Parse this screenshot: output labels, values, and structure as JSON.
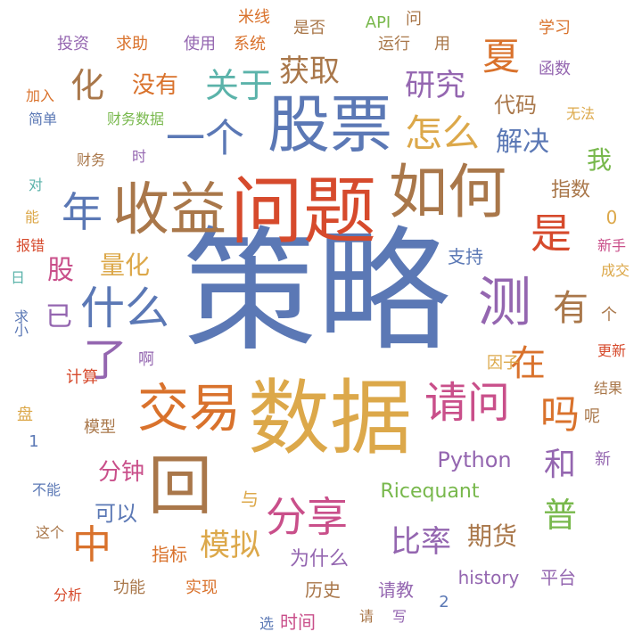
{
  "palette": {
    "blue": "#5b78b5",
    "red": "#d64a2c",
    "orange": "#d9722c",
    "gold": "#dca84a",
    "yellow": "#e2b43a",
    "purple": "#9466b0",
    "pink": "#c94f8a",
    "green": "#78b84c",
    "teal": "#5bb3aa",
    "brown": "#a9774a"
  },
  "words": [
    {
      "text": "策略",
      "color": "blue",
      "orient": "h"
    },
    {
      "text": "数据",
      "color": "gold",
      "orient": "h"
    },
    {
      "text": "问题",
      "color": "red",
      "orient": "h"
    },
    {
      "text": "股票",
      "color": "blue",
      "orient": "h"
    },
    {
      "text": "如何",
      "color": "brown",
      "orient": "h"
    },
    {
      "text": "收益",
      "color": "brown",
      "orient": "h"
    },
    {
      "text": "回",
      "color": "brown",
      "orient": "h"
    },
    {
      "text": "交易",
      "color": "orange",
      "orient": "h"
    },
    {
      "text": "测",
      "color": "purple",
      "orient": "h"
    },
    {
      "text": "一个",
      "color": "blue",
      "orient": "h"
    },
    {
      "text": "请问",
      "color": "pink",
      "orient": "h"
    },
    {
      "text": "吗",
      "color": "orange",
      "orient": "h"
    },
    {
      "text": "是",
      "color": "red",
      "orient": "h"
    },
    {
      "text": "什么",
      "color": "blue",
      "orient": "h"
    },
    {
      "text": "了",
      "color": "purple",
      "orient": "h"
    },
    {
      "text": "怎么",
      "color": "gold",
      "orient": "h"
    },
    {
      "text": "年",
      "color": "blue",
      "orient": "h"
    },
    {
      "text": "分享",
      "color": "pink",
      "orient": "h"
    },
    {
      "text": "中",
      "color": "orange",
      "orient": "h"
    },
    {
      "text": "有",
      "color": "brown",
      "orient": "h"
    },
    {
      "text": "在",
      "color": "orange",
      "orient": "h"
    },
    {
      "text": "和",
      "color": "purple",
      "orient": "h"
    },
    {
      "text": "普",
      "color": "green",
      "orient": "h"
    },
    {
      "text": "夏",
      "color": "orange",
      "orient": "h"
    },
    {
      "text": "化",
      "color": "brown",
      "orient": "h"
    },
    {
      "text": "关于",
      "color": "teal",
      "orient": "h"
    },
    {
      "text": "获取",
      "color": "brown",
      "orient": "h"
    },
    {
      "text": "研究",
      "color": "purple",
      "orient": "h"
    },
    {
      "text": "解决",
      "color": "blue",
      "orient": "h"
    },
    {
      "text": "比率",
      "color": "purple",
      "orient": "h"
    },
    {
      "text": "模拟",
      "color": "gold",
      "orient": "h"
    },
    {
      "text": "期货",
      "color": "brown",
      "orient": "h"
    },
    {
      "text": "量化",
      "color": "gold",
      "orient": "h"
    },
    {
      "text": "股",
      "color": "pink",
      "orient": "h"
    },
    {
      "text": "已",
      "color": "purple",
      "orient": "h"
    },
    {
      "text": "分钟",
      "color": "pink",
      "orient": "h"
    },
    {
      "text": "可以",
      "color": "blue",
      "orient": "h"
    },
    {
      "text": "Python",
      "color": "purple",
      "orient": "h"
    },
    {
      "text": "Ricequant",
      "color": "green",
      "orient": "h"
    },
    {
      "text": "没有",
      "color": "orange",
      "orient": "h"
    },
    {
      "text": "代码",
      "color": "brown",
      "orient": "h"
    },
    {
      "text": "我",
      "color": "green",
      "orient": "h"
    },
    {
      "text": "指数",
      "color": "brown",
      "orient": "h"
    },
    {
      "text": "0",
      "color": "gold",
      "orient": "h"
    },
    {
      "text": "为什么",
      "color": "purple",
      "orient": "h"
    },
    {
      "text": "指标",
      "color": "orange",
      "orient": "h"
    },
    {
      "text": "历史",
      "color": "brown",
      "orient": "h"
    },
    {
      "text": "时间",
      "color": "pink",
      "orient": "h"
    },
    {
      "text": "请教",
      "color": "purple",
      "orient": "h"
    },
    {
      "text": "history",
      "color": "purple",
      "orient": "h"
    },
    {
      "text": "平台",
      "color": "purple",
      "orient": "h"
    },
    {
      "text": "功能",
      "color": "brown",
      "orient": "h"
    },
    {
      "text": "实现",
      "color": "orange",
      "orient": "h"
    },
    {
      "text": "分析",
      "color": "red",
      "orient": "h"
    },
    {
      "text": "这个",
      "color": "brown",
      "orient": "h"
    },
    {
      "text": "不能",
      "color": "blue",
      "orient": "h"
    },
    {
      "text": "与",
      "color": "gold",
      "orient": "h"
    },
    {
      "text": "支持",
      "color": "blue",
      "orient": "h"
    },
    {
      "text": "成交",
      "color": "gold",
      "orient": "h"
    },
    {
      "text": "新手",
      "color": "pink",
      "orient": "h"
    },
    {
      "text": "个",
      "color": "brown",
      "orient": "h"
    },
    {
      "text": "更新",
      "color": "red",
      "orient": "h"
    },
    {
      "text": "结果",
      "color": "brown",
      "orient": "h"
    },
    {
      "text": "呢",
      "color": "brown",
      "orient": "h"
    },
    {
      "text": "新",
      "color": "purple",
      "orient": "h"
    },
    {
      "text": "因子",
      "color": "gold",
      "orient": "h"
    },
    {
      "text": "啊",
      "color": "purple",
      "orient": "h"
    },
    {
      "text": "计算",
      "color": "red",
      "orient": "h"
    },
    {
      "text": "盘",
      "color": "gold",
      "orient": "h"
    },
    {
      "text": "模型",
      "color": "brown",
      "orient": "h"
    },
    {
      "text": "1",
      "color": "blue",
      "orient": "h"
    },
    {
      "text": "米线",
      "color": "orange",
      "orient": "h"
    },
    {
      "text": "是否",
      "color": "brown",
      "orient": "h"
    },
    {
      "text": "API",
      "color": "green",
      "orient": "h"
    },
    {
      "text": "问",
      "color": "brown",
      "orient": "h"
    },
    {
      "text": "学习",
      "color": "orange",
      "orient": "h"
    },
    {
      "text": "投资",
      "color": "purple",
      "orient": "h"
    },
    {
      "text": "求助",
      "color": "orange",
      "orient": "h"
    },
    {
      "text": "使用",
      "color": "purple",
      "orient": "h"
    },
    {
      "text": "系统",
      "color": "orange",
      "orient": "h"
    },
    {
      "text": "运行",
      "color": "brown",
      "orient": "h"
    },
    {
      "text": "用",
      "color": "brown",
      "orient": "h"
    },
    {
      "text": "函数",
      "color": "purple",
      "orient": "h"
    },
    {
      "text": "加入",
      "color": "orange",
      "orient": "h"
    },
    {
      "text": "简单",
      "color": "blue",
      "orient": "h"
    },
    {
      "text": "财务数据",
      "color": "green",
      "orient": "h"
    },
    {
      "text": "无法",
      "color": "gold",
      "orient": "h"
    },
    {
      "text": "财务",
      "color": "brown",
      "orient": "h"
    },
    {
      "text": "时",
      "color": "purple",
      "orient": "h"
    },
    {
      "text": "对",
      "color": "teal",
      "orient": "h"
    },
    {
      "text": "能",
      "color": "gold",
      "orient": "h"
    },
    {
      "text": "报错",
      "color": "red",
      "orient": "h"
    },
    {
      "text": "日",
      "color": "teal",
      "orient": "h"
    },
    {
      "text": "求小",
      "color": "blue",
      "orient": "v"
    },
    {
      "text": "2",
      "color": "blue",
      "orient": "h"
    },
    {
      "text": "选",
      "color": "blue",
      "orient": "h"
    },
    {
      "text": "请",
      "color": "brown",
      "orient": "h"
    },
    {
      "text": "写",
      "color": "purple",
      "orient": "h"
    }
  ]
}
